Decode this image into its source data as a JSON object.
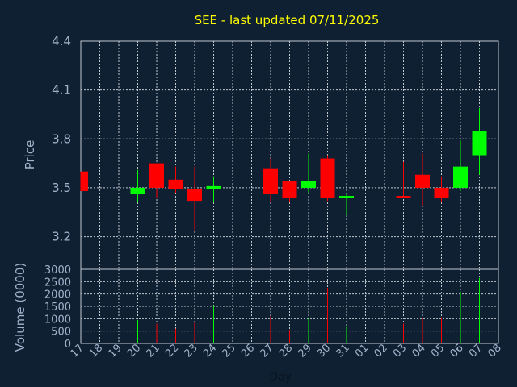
{
  "chart_data": {
    "type": "candlestick",
    "title": "SEE - last updated 07/11/2025",
    "xlabel": "Day",
    "price_panel": {
      "ylabel": "Price",
      "yticks": [
        "4.4",
        "4.1",
        "3.8",
        "3.5",
        "3.2"
      ],
      "ylim": [
        3.0,
        4.4
      ],
      "grid": true
    },
    "volume_panel": {
      "ylabel": "Volume (0000)",
      "yticks": [
        "3000",
        "2500",
        "2000",
        "1500",
        "1000",
        "500",
        "0"
      ],
      "ylim": [
        0,
        3000
      ],
      "grid": true
    },
    "x_ticks": [
      "17",
      "18",
      "19",
      "20",
      "21",
      "22",
      "23",
      "24",
      "25",
      "26",
      "27",
      "28",
      "29",
      "30",
      "31",
      "01",
      "02",
      "03",
      "04",
      "05",
      "06",
      "07",
      "08"
    ],
    "candles": [
      {
        "day": "17",
        "open": 3.6,
        "close": 3.48,
        "high": 3.6,
        "low": 3.48,
        "volume": 0
      },
      {
        "day": "20",
        "open": 3.46,
        "close": 3.5,
        "high": 3.61,
        "low": 3.41,
        "volume": 950
      },
      {
        "day": "21",
        "open": 3.65,
        "close": 3.5,
        "high": 3.65,
        "low": 3.44,
        "volume": 800
      },
      {
        "day": "22",
        "open": 3.55,
        "close": 3.49,
        "high": 3.63,
        "low": 3.47,
        "volume": 600
      },
      {
        "day": "23",
        "open": 3.49,
        "close": 3.42,
        "high": 3.63,
        "low": 3.24,
        "volume": 850
      },
      {
        "day": "24",
        "open": 3.49,
        "close": 3.51,
        "high": 3.57,
        "low": 3.41,
        "volume": 1550
      },
      {
        "day": "27",
        "open": 3.62,
        "close": 3.46,
        "high": 3.68,
        "low": 3.41,
        "volume": 1100
      },
      {
        "day": "28",
        "open": 3.54,
        "close": 3.44,
        "high": 3.54,
        "low": 3.41,
        "volume": 550
      },
      {
        "day": "29",
        "open": 3.5,
        "close": 3.54,
        "high": 3.71,
        "low": 3.47,
        "volume": 1050
      },
      {
        "day": "30",
        "open": 3.68,
        "close": 3.44,
        "high": 3.7,
        "low": 3.42,
        "volume": 2250
      },
      {
        "day": "31",
        "open": 3.44,
        "close": 3.45,
        "high": 3.46,
        "low": 3.33,
        "volume": 700
      },
      {
        "day": "03",
        "open": 3.45,
        "close": 3.44,
        "high": 3.66,
        "low": 3.44,
        "volume": 800
      },
      {
        "day": "04",
        "open": 3.58,
        "close": 3.5,
        "high": 3.71,
        "low": 3.39,
        "volume": 1050
      },
      {
        "day": "05",
        "open": 3.5,
        "close": 3.44,
        "high": 3.57,
        "low": 3.41,
        "volume": 1050
      },
      {
        "day": "06",
        "open": 3.5,
        "close": 3.63,
        "high": 3.79,
        "low": 3.48,
        "volume": 2100
      },
      {
        "day": "07",
        "open": 3.7,
        "close": 3.85,
        "high": 3.99,
        "low": 3.58,
        "volume": 2650
      }
    ],
    "colors": {
      "background": "#102033",
      "up": "#00ff00",
      "down": "#ff0000",
      "grid": "#c0c8d0",
      "title": "#ffff00",
      "text": "#a0b4cc"
    }
  }
}
